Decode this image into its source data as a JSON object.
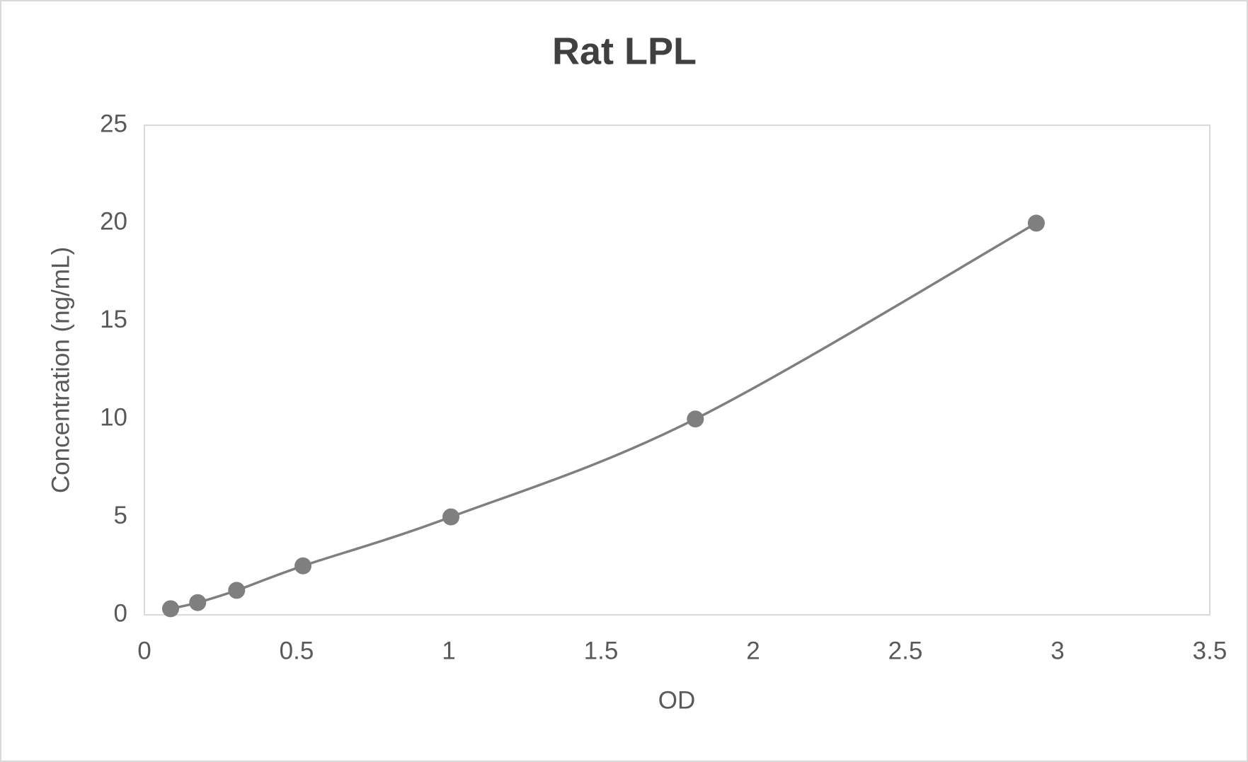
{
  "chart_data": {
    "type": "line",
    "title": "Rat LPL",
    "x_label": "OD",
    "y_label": "Concentration (ng/mL)",
    "x": [
      0.086,
      0.175,
      0.303,
      0.521,
      1.007,
      1.81,
      2.93
    ],
    "series": [
      {
        "name": "Rat LPL",
        "color": "#7f7f7f",
        "values": [
          0.312,
          0.625,
          1.25,
          2.5,
          5,
          10,
          20
        ]
      }
    ],
    "xlim": [
      0,
      3.5
    ],
    "xticks": [
      0,
      0.5,
      1,
      1.5,
      2,
      2.5,
      3,
      3.5
    ],
    "ylim": [
      0,
      25
    ],
    "yticks": [
      0,
      5,
      10,
      15,
      20,
      25
    ],
    "grid": false,
    "smooth": true,
    "markers": true
  }
}
